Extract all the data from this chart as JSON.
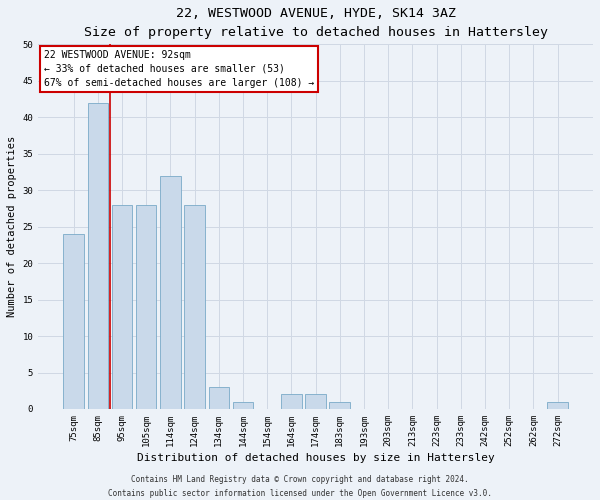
{
  "title1": "22, WESTWOOD AVENUE, HYDE, SK14 3AZ",
  "title2": "Size of property relative to detached houses in Hattersley",
  "xlabel": "Distribution of detached houses by size in Hattersley",
  "ylabel": "Number of detached properties",
  "categories": [
    "75sqm",
    "85sqm",
    "95sqm",
    "105sqm",
    "114sqm",
    "124sqm",
    "134sqm",
    "144sqm",
    "154sqm",
    "164sqm",
    "174sqm",
    "183sqm",
    "193sqm",
    "203sqm",
    "213sqm",
    "223sqm",
    "233sqm",
    "242sqm",
    "252sqm",
    "262sqm",
    "272sqm"
  ],
  "values": [
    24,
    42,
    28,
    28,
    32,
    28,
    3,
    1,
    0,
    2,
    2,
    1,
    0,
    0,
    0,
    0,
    0,
    0,
    0,
    0,
    1
  ],
  "bar_color": "#c9d9ea",
  "bar_edge_color": "#7aaac8",
  "subject_label": "22 WESTWOOD AVENUE: 92sqm",
  "annotation_line1": "← 33% of detached houses are smaller (53)",
  "annotation_line2": "67% of semi-detached houses are larger (108) →",
  "annotation_box_color": "#ffffff",
  "annotation_box_edge": "#cc0000",
  "subject_line_color": "#cc0000",
  "ylim": [
    0,
    50
  ],
  "yticks": [
    0,
    5,
    10,
    15,
    20,
    25,
    30,
    35,
    40,
    45,
    50
  ],
  "footnote1": "Contains HM Land Registry data © Crown copyright and database right 2024.",
  "footnote2": "Contains public sector information licensed under the Open Government Licence v3.0.",
  "bg_color": "#edf2f8",
  "plot_bg_color": "#edf2f8",
  "grid_color": "#d0d8e4",
  "title1_fontsize": 9.5,
  "title2_fontsize": 8.5,
  "xlabel_fontsize": 8.0,
  "ylabel_fontsize": 7.5,
  "tick_fontsize": 6.5,
  "annot_fontsize": 7.0,
  "footnote_fontsize": 5.5
}
